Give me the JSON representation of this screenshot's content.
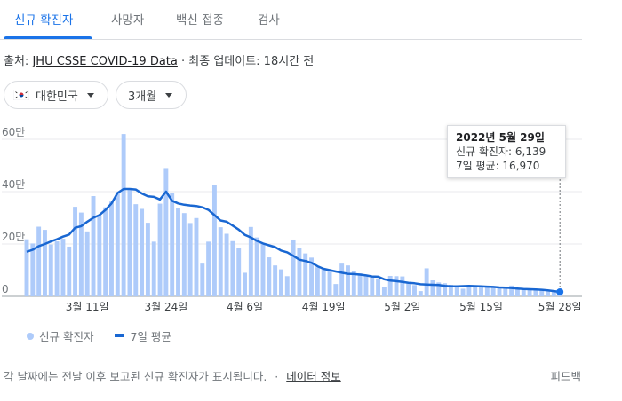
{
  "tabs": [
    "신규 확진자",
    "사망자",
    "백신 접종",
    "검사"
  ],
  "source": {
    "prefix": "출처:",
    "link": "JHU CSSE COVID-19 Data",
    "sep": " · ",
    "updated": "최종 업데이트: 18시간 전"
  },
  "filters": {
    "region": "대한민국",
    "region_flag_icon": "south-korea-flag-icon",
    "period": "3개월"
  },
  "tooltip": {
    "date": "2022년 5월 29일",
    "line1": "신규 확진자: 6,139",
    "line2": "7일 평균: 16,970"
  },
  "legend": {
    "bars": "신규 확진자",
    "line": "7일 평균"
  },
  "footer": {
    "note": "각 날짜에는 전날 이후 보고된 신규 확진자가 표시됩니다.",
    "sep": "·",
    "link": "데이터 정보"
  },
  "feedback": "피드백",
  "colors": {
    "accent": "#1a73e8",
    "bar": "#aecbfa",
    "line": "#1967d2"
  },
  "chart_data": {
    "type": "bar",
    "y_tick_labels": [
      "0",
      "20만",
      "40만",
      "60만"
    ],
    "ylim": [
      0,
      600000
    ],
    "x_tick_labels": [
      "3월 11일",
      "3월 24일",
      "4월 6일",
      "4월 19일",
      "5월 2일",
      "5월 15일",
      "5월 28일"
    ],
    "x_start": "2022-03-01",
    "x_end": "2022-05-29",
    "series": [
      {
        "name": "신규 확진자",
        "type": "bar",
        "values": [
          218000,
          202000,
          266000,
          254000,
          198000,
          210000,
          220000,
          190000,
          342000,
          320000,
          248000,
          383000,
          309000,
          340000,
          362000,
          395000,
          620000,
          406000,
          352000,
          334000,
          281000,
          209000,
          354000,
          490000,
          396000,
          339000,
          318000,
          280000,
          299000,
          125000,
          209000,
          426000,
          264000,
          239000,
          211000,
          185000,
          90000,
          265000,
          225000,
          200000,
          149000,
          118000,
          103000,
          77000,
          217000,
          185000,
          164000,
          148000,
          111000,
          107000,
          95000,
          47000,
          125000,
          118000,
          98000,
          88000,
          81000,
          74000,
          67000,
          35000,
          78000,
          77000,
          76000,
          51000,
          43000,
          20000,
          107000,
          61000,
          53000,
          50000,
          44000,
          40000,
          29000,
          36000,
          40000,
          38000,
          37000,
          35000,
          30000,
          36000,
          41000,
          28000,
          26000,
          25000,
          26000,
          24000,
          19000,
          22000,
          6139
        ]
      },
      {
        "name": "7일 평균",
        "type": "line",
        "values": [
          170000,
          178000,
          192000,
          200000,
          210000,
          218000,
          228000,
          236000,
          262000,
          268000,
          285000,
          300000,
          310000,
          330000,
          355000,
          395000,
          410000,
          410000,
          408000,
          393000,
          382000,
          380000,
          370000,
          400000,
          365000,
          355000,
          350000,
          347000,
          345000,
          340000,
          330000,
          310000,
          290000,
          285000,
          270000,
          255000,
          235000,
          225000,
          212000,
          202000,
          195000,
          188000,
          175000,
          168000,
          155000,
          140000,
          135000,
          128000,
          115000,
          105000,
          100000,
          95000,
          90000,
          86000,
          85000,
          83000,
          80000,
          76000,
          75000,
          65000,
          60000,
          58000,
          55000,
          52000,
          50000,
          46000,
          45000,
          44000,
          43000,
          40000,
          38000,
          38000,
          39000,
          40000,
          39000,
          38000,
          37000,
          36000,
          34000,
          33000,
          32000,
          30000,
          28000,
          27000,
          26000,
          25000,
          23000,
          20000,
          16970
        ]
      }
    ],
    "grid": true
  }
}
